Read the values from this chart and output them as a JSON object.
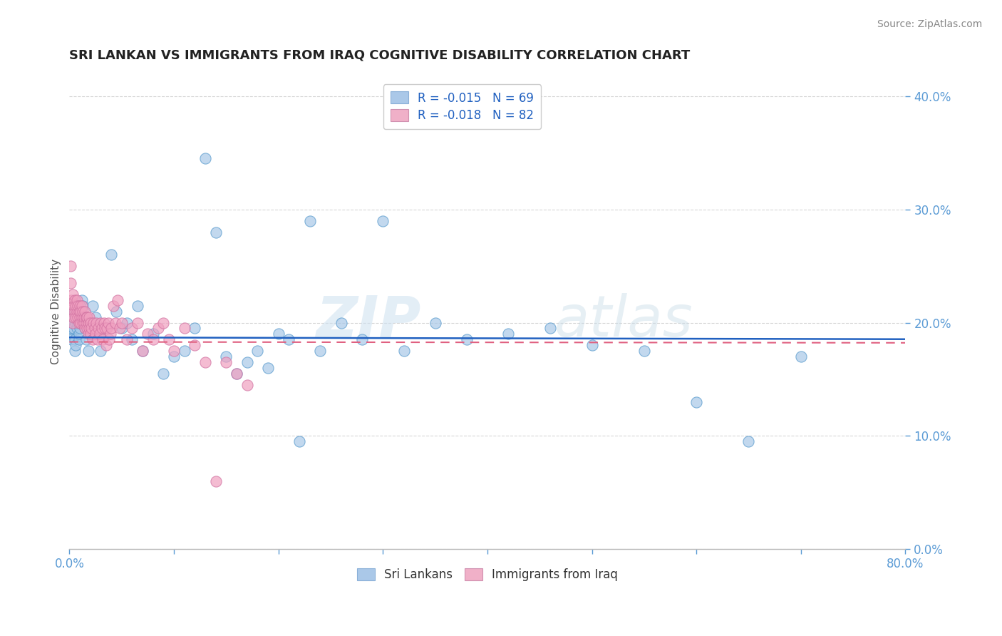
{
  "title": "SRI LANKAN VS IMMIGRANTS FROM IRAQ COGNITIVE DISABILITY CORRELATION CHART",
  "source_text": "Source: ZipAtlas.com",
  "ylabel": "Cognitive Disability",
  "xmin": 0.0,
  "xmax": 0.8,
  "ymin": 0.0,
  "ymax": 0.42,
  "blue_color": "#a8c8e8",
  "pink_color": "#f0a0c0",
  "blue_line_color": "#2060c0",
  "pink_line_color": "#e06080",
  "watermark_zip": "ZIP",
  "watermark_atlas": "atlas",
  "sri_lankan_R": -0.015,
  "sri_lankan_N": 69,
  "iraq_R": -0.018,
  "iraq_N": 82,
  "background_color": "#ffffff",
  "grid_color": "#cccccc",
  "title_color": "#222222",
  "source_color": "#888888",
  "tick_color": "#5b9bd5",
  "ylabel_color": "#555555",
  "legend_r_color": "#2060c0",
  "legend_n_color": "#2060c0",
  "sri_lankans_x": [
    0.001,
    0.002,
    0.002,
    0.003,
    0.003,
    0.004,
    0.004,
    0.005,
    0.005,
    0.006,
    0.006,
    0.007,
    0.007,
    0.008,
    0.008,
    0.009,
    0.009,
    0.01,
    0.01,
    0.011,
    0.012,
    0.013,
    0.014,
    0.015,
    0.016,
    0.018,
    0.02,
    0.022,
    0.025,
    0.028,
    0.03,
    0.035,
    0.04,
    0.045,
    0.05,
    0.055,
    0.06,
    0.065,
    0.07,
    0.08,
    0.09,
    0.1,
    0.11,
    0.12,
    0.13,
    0.14,
    0.15,
    0.16,
    0.17,
    0.18,
    0.19,
    0.2,
    0.21,
    0.22,
    0.23,
    0.24,
    0.26,
    0.28,
    0.3,
    0.32,
    0.35,
    0.38,
    0.42,
    0.46,
    0.5,
    0.55,
    0.6,
    0.65,
    0.7
  ],
  "sri_lankans_y": [
    0.19,
    0.195,
    0.185,
    0.2,
    0.205,
    0.21,
    0.195,
    0.185,
    0.175,
    0.18,
    0.2,
    0.205,
    0.195,
    0.2,
    0.215,
    0.185,
    0.19,
    0.2,
    0.195,
    0.21,
    0.22,
    0.215,
    0.2,
    0.195,
    0.185,
    0.175,
    0.19,
    0.215,
    0.205,
    0.19,
    0.175,
    0.195,
    0.26,
    0.21,
    0.195,
    0.2,
    0.185,
    0.215,
    0.175,
    0.19,
    0.155,
    0.17,
    0.175,
    0.195,
    0.345,
    0.28,
    0.17,
    0.155,
    0.165,
    0.175,
    0.16,
    0.19,
    0.185,
    0.095,
    0.29,
    0.175,
    0.2,
    0.185,
    0.29,
    0.175,
    0.2,
    0.185,
    0.19,
    0.195,
    0.18,
    0.175,
    0.13,
    0.095,
    0.17
  ],
  "iraq_x": [
    0.001,
    0.001,
    0.002,
    0.002,
    0.003,
    0.003,
    0.004,
    0.004,
    0.005,
    0.005,
    0.006,
    0.006,
    0.007,
    0.007,
    0.008,
    0.008,
    0.009,
    0.009,
    0.01,
    0.01,
    0.011,
    0.011,
    0.012,
    0.012,
    0.013,
    0.013,
    0.014,
    0.014,
    0.015,
    0.015,
    0.016,
    0.016,
    0.017,
    0.017,
    0.018,
    0.018,
    0.019,
    0.019,
    0.02,
    0.02,
    0.021,
    0.022,
    0.023,
    0.024,
    0.025,
    0.026,
    0.027,
    0.028,
    0.029,
    0.03,
    0.031,
    0.032,
    0.033,
    0.034,
    0.035,
    0.036,
    0.037,
    0.038,
    0.039,
    0.04,
    0.042,
    0.044,
    0.046,
    0.048,
    0.05,
    0.055,
    0.06,
    0.065,
    0.07,
    0.075,
    0.08,
    0.085,
    0.09,
    0.095,
    0.1,
    0.11,
    0.12,
    0.13,
    0.14,
    0.15,
    0.16,
    0.17
  ],
  "iraq_y": [
    0.235,
    0.25,
    0.22,
    0.21,
    0.225,
    0.2,
    0.215,
    0.205,
    0.22,
    0.21,
    0.215,
    0.205,
    0.22,
    0.21,
    0.215,
    0.205,
    0.2,
    0.21,
    0.205,
    0.215,
    0.2,
    0.21,
    0.205,
    0.215,
    0.2,
    0.21,
    0.2,
    0.205,
    0.195,
    0.21,
    0.2,
    0.205,
    0.195,
    0.205,
    0.19,
    0.2,
    0.195,
    0.205,
    0.19,
    0.2,
    0.195,
    0.185,
    0.2,
    0.195,
    0.19,
    0.2,
    0.185,
    0.195,
    0.19,
    0.2,
    0.195,
    0.185,
    0.2,
    0.195,
    0.18,
    0.195,
    0.2,
    0.185,
    0.19,
    0.195,
    0.215,
    0.2,
    0.22,
    0.195,
    0.2,
    0.185,
    0.195,
    0.2,
    0.175,
    0.19,
    0.185,
    0.195,
    0.2,
    0.185,
    0.175,
    0.195,
    0.18,
    0.165,
    0.06,
    0.165,
    0.155,
    0.145
  ]
}
